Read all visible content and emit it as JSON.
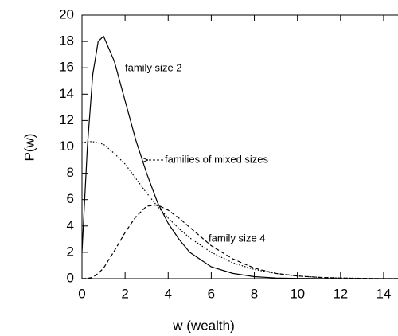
{
  "chart_data": {
    "type": "line",
    "x_label": "w (wealth)",
    "y_label": "P(w)",
    "annotations": [
      "family size 2",
      "families of mixed sizes",
      "family size 4"
    ],
    "x": [
      0,
      0.25,
      0.5,
      0.75,
      1,
      1.5,
      2,
      2.5,
      3,
      3.5,
      4,
      4.5,
      5,
      6,
      7,
      8,
      9,
      10,
      11,
      12,
      14,
      15
    ],
    "series": [
      {
        "name": "family size 2",
        "color": "#000000",
        "dash": "solid",
        "values": [
          2,
          10,
          15.5,
          18,
          18.4,
          16.5,
          13.5,
          10.5,
          8,
          5.8,
          4.2,
          3,
          2,
          0.9,
          0.4,
          0.15,
          0.05,
          0.02,
          0.01,
          0,
          0,
          0
        ]
      },
      {
        "name": "families of mixed sizes",
        "color": "#000000",
        "dash": "dotted",
        "values": [
          10.3,
          10.4,
          10.4,
          10.3,
          10.2,
          9.5,
          8.7,
          7.6,
          6.5,
          5.5,
          4.6,
          3.8,
          3.1,
          2,
          1.2,
          0.7,
          0.4,
          0.2,
          0.1,
          0.05,
          0,
          0
        ]
      },
      {
        "name": "family size 4",
        "color": "#000000",
        "dash": "dashed",
        "values": [
          0,
          0.02,
          0.1,
          0.4,
          0.8,
          2.1,
          3.5,
          4.7,
          5.5,
          5.6,
          5.2,
          4.6,
          3.9,
          2.5,
          1.5,
          0.8,
          0.4,
          0.2,
          0.1,
          0.04,
          0,
          0
        ]
      }
    ],
    "xlim": [
      0,
      15
    ],
    "xticks": [
      0,
      2,
      4,
      6,
      8,
      10,
      12,
      14
    ],
    "ylim": [
      0,
      20
    ],
    "yticks": [
      0,
      2,
      4,
      6,
      8,
      10,
      12,
      14,
      16,
      18,
      20
    ],
    "grid": false,
    "legend": false
  }
}
